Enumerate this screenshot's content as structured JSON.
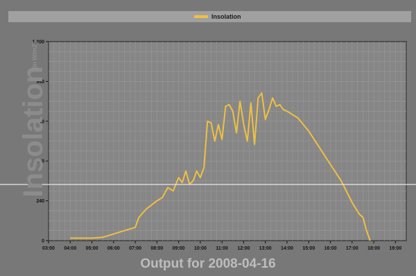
{
  "legend": {
    "label": "Insolation",
    "color": "#f0c040"
  },
  "chart_data": {
    "type": "line",
    "title": "Output for 2008-04-16",
    "ylabel": "Insolation",
    "yunit": "[in W/m2]",
    "xlabel": "",
    "ylim": [
      0,
      1200
    ],
    "yticks": [
      0,
      240,
      480,
      720,
      960,
      1200
    ],
    "ytick_labels": [
      "0",
      "240",
      "480",
      "720",
      "960",
      "1,200"
    ],
    "xlim": [
      "03:00",
      "19:30"
    ],
    "xticks": [
      "03:00",
      "04:00",
      "05:00",
      "06:00",
      "07:00",
      "08:00",
      "09:00",
      "10:00",
      "11:00",
      "12:00",
      "13:00",
      "14:00",
      "15:00",
      "16:00",
      "17:00",
      "18:00",
      "19:00"
    ],
    "grid": true,
    "legend_position": "top",
    "series": [
      {
        "name": "Insolation",
        "color": "#f0c040",
        "x": [
          "04:00",
          "05:00",
          "05:30",
          "06:00",
          "06:30",
          "07:00",
          "07:10",
          "07:30",
          "08:00",
          "08:15",
          "08:30",
          "08:45",
          "09:00",
          "09:10",
          "09:20",
          "09:30",
          "09:40",
          "09:50",
          "10:00",
          "10:10",
          "10:20",
          "10:30",
          "10:40",
          "10:50",
          "11:00",
          "11:10",
          "11:20",
          "11:30",
          "11:40",
          "11:50",
          "12:00",
          "12:10",
          "12:20",
          "12:30",
          "12:40",
          "12:50",
          "13:00",
          "13:10",
          "13:20",
          "13:30",
          "13:40",
          "13:50",
          "14:00",
          "14:30",
          "15:00",
          "15:30",
          "16:00",
          "16:30",
          "17:00",
          "17:20",
          "17:30",
          "17:40",
          "17:50"
        ],
        "values": [
          15,
          15,
          20,
          40,
          60,
          80,
          140,
          190,
          240,
          260,
          320,
          300,
          380,
          350,
          420,
          340,
          360,
          420,
          380,
          440,
          720,
          710,
          600,
          700,
          610,
          810,
          820,
          780,
          650,
          840,
          700,
          600,
          830,
          580,
          860,
          890,
          730,
          790,
          860,
          810,
          820,
          790,
          780,
          740,
          660,
          560,
          460,
          360,
          230,
          160,
          140,
          60,
          0
        ]
      }
    ]
  }
}
